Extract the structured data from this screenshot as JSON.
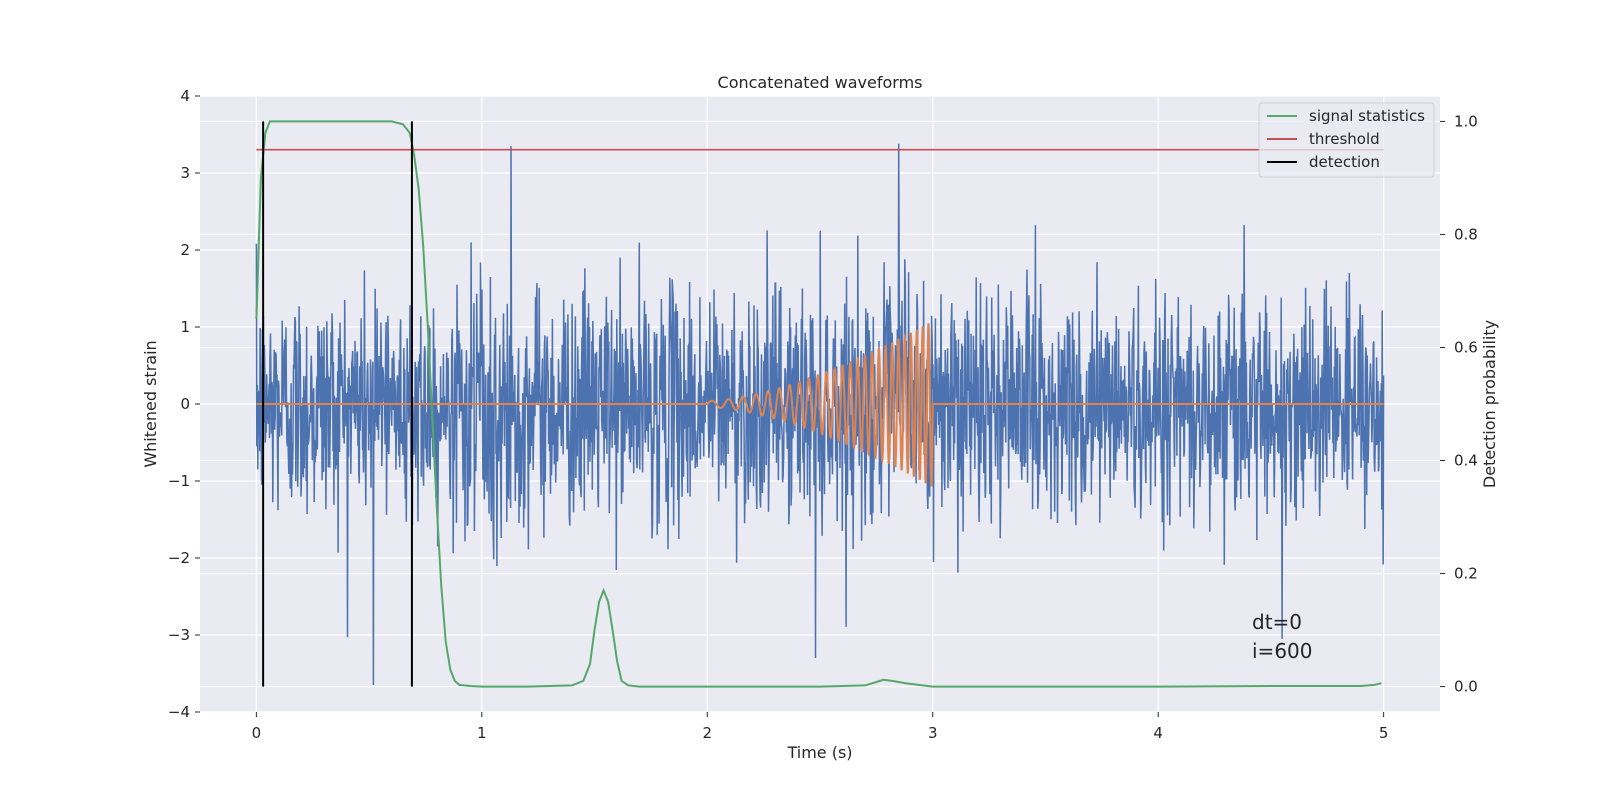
{
  "chart_data": {
    "type": "line",
    "title": "Concatenated waveforms",
    "xlabel": "Time (s)",
    "ylabel": "Whitened strain",
    "y2label": "Detection probability",
    "xlim": [
      -0.25,
      5.25
    ],
    "ylim": [
      -4,
      4
    ],
    "y2lim": [
      -0.045,
      1.045
    ],
    "xticks": [
      0,
      1,
      2,
      3,
      4,
      5
    ],
    "xtick_labels": [
      "0",
      "1",
      "2",
      "3",
      "4",
      "5"
    ],
    "yticks": [
      -4,
      -3,
      -2,
      -1,
      0,
      1,
      2,
      3,
      4
    ],
    "ytick_labels": [
      "−4",
      "−3",
      "−2",
      "−1",
      "0",
      "1",
      "2",
      "3",
      "4"
    ],
    "y2ticks": [
      0.0,
      0.2,
      0.4,
      0.6,
      0.8,
      1.0
    ],
    "y2tick_labels": [
      "0.0",
      "0.2",
      "0.4",
      "0.6",
      "0.8",
      "1.0"
    ],
    "grid": true,
    "legend_position": "top-right",
    "annotation": [
      "dt=0",
      "i=600"
    ],
    "colors": {
      "background": "#eaeaf2",
      "noise": "#4c72b0",
      "injection": "#dd8452",
      "signal": "#55a868",
      "threshold": "#c44e52",
      "detection": "#000000"
    },
    "noise": {
      "axis": "left",
      "t_range": [
        0,
        5
      ],
      "amplitude_std": 0.75,
      "extremes": [
        {
          "t": 0.52,
          "y": -3.65
        },
        {
          "t": 2.85,
          "y": 3.38
        },
        {
          "t": 1.13,
          "y": 3.35
        },
        {
          "t": 4.55,
          "y": -3.05
        },
        {
          "t": 2.48,
          "y": -3.3
        }
      ]
    },
    "injection": {
      "axis": "left",
      "t_start": 2.0,
      "t_end": 3.0,
      "amp_start": 0.04,
      "amp_end": 1.08,
      "freq_start": 12,
      "freq_end": 40
    },
    "series": [
      {
        "name": "signal statistics",
        "axis": "right",
        "x": [
          0.0,
          0.02,
          0.04,
          0.06,
          0.1,
          0.2,
          0.4,
          0.6,
          0.65,
          0.68,
          0.7,
          0.72,
          0.74,
          0.76,
          0.78,
          0.8,
          0.82,
          0.84,
          0.86,
          0.88,
          0.9,
          0.95,
          1.0,
          1.2,
          1.4,
          1.45,
          1.48,
          1.5,
          1.52,
          1.54,
          1.56,
          1.58,
          1.6,
          1.62,
          1.65,
          1.7,
          2.0,
          2.5,
          2.7,
          2.75,
          2.78,
          2.82,
          2.88,
          3.0,
          3.5,
          4.0,
          4.5,
          4.9,
          4.96,
          4.99
        ],
        "y": [
          0.65,
          0.9,
          0.98,
          1.0,
          1.0,
          1.0,
          1.0,
          1.0,
          0.995,
          0.98,
          0.94,
          0.88,
          0.78,
          0.64,
          0.48,
          0.32,
          0.18,
          0.08,
          0.03,
          0.01,
          0.003,
          0.001,
          0.0,
          0.0,
          0.002,
          0.01,
          0.04,
          0.1,
          0.15,
          0.17,
          0.15,
          0.1,
          0.045,
          0.01,
          0.002,
          0.0,
          0.0,
          0.0,
          0.002,
          0.008,
          0.012,
          0.01,
          0.006,
          0.0,
          0.0,
          0.0,
          0.001,
          0.001,
          0.003,
          0.006
        ]
      },
      {
        "name": "threshold",
        "axis": "right",
        "x": [
          0,
          5
        ],
        "y": [
          0.95,
          0.95
        ]
      },
      {
        "name": "detection",
        "axis": "right",
        "x_positions": [
          0.03,
          0.69
        ],
        "y_range": [
          0,
          1
        ]
      }
    ]
  }
}
